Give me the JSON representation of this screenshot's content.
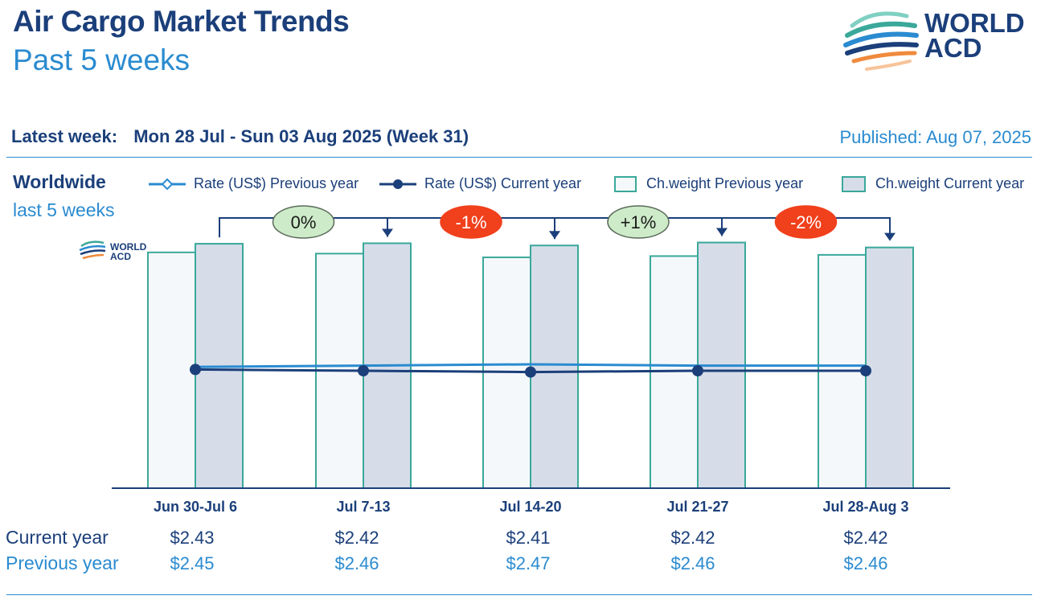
{
  "header": {
    "title": "Air Cargo Market Trends",
    "subtitle": "Past 5 weeks",
    "logo_text_1": "WORLD",
    "logo_text_2": "ACD"
  },
  "info": {
    "latest_label": "Latest week:",
    "latest_value": "Mon 28 Jul - Sun 03 Aug 2025 (Week 31)",
    "published": "Published: Aug 07, 2025"
  },
  "region": {
    "name": "Worldwide",
    "period": "last 5 weeks"
  },
  "legend": {
    "rate_prev": "Rate (US$) Previous year",
    "rate_curr": "Rate (US$) Current year",
    "cw_prev": "Ch.weight Previous year",
    "cw_curr": "Ch.weight Current year"
  },
  "rows": {
    "current_label": "Current year",
    "previous_label": "Previous year"
  },
  "colors": {
    "navy": "#1b3f7a",
    "blue": "#2a8bd0",
    "bar_border": "#3aa89a",
    "bar_prev_fill": "#f5f8fb",
    "bar_curr_fill": "#d6dde9",
    "badge_neutral": "#cdebc8",
    "badge_negative": "#f0401c"
  },
  "chart_data": {
    "type": "bar",
    "categories": [
      "Jun 30-Jul 6",
      "Jul 7-13",
      "Jul 14-20",
      "Jul 21-27",
      "Jul 28-Aug 3"
    ],
    "series": [
      {
        "name": "Ch.weight Previous year",
        "type": "bar",
        "values": [
          95.5,
          95.0,
          93.5,
          94.0,
          94.5
        ]
      },
      {
        "name": "Ch.weight Current year",
        "type": "bar",
        "values": [
          99.0,
          99.2,
          98.3,
          99.5,
          97.5
        ]
      },
      {
        "name": "Rate (US$) Current year",
        "type": "line",
        "values": [
          2.43,
          2.42,
          2.41,
          2.42,
          2.42
        ],
        "labels": [
          "$2.43",
          "$2.42",
          "$2.41",
          "$2.42",
          "$2.42"
        ]
      },
      {
        "name": "Rate (US$) Previous year",
        "type": "line",
        "values": [
          2.45,
          2.46,
          2.47,
          2.46,
          2.46
        ],
        "labels": [
          "$2.45",
          "$2.46",
          "$2.47",
          "$2.46",
          "$2.46"
        ]
      }
    ],
    "changes": [
      "0%",
      "-1%",
      "+1%",
      "-2%"
    ],
    "legend": "top"
  }
}
